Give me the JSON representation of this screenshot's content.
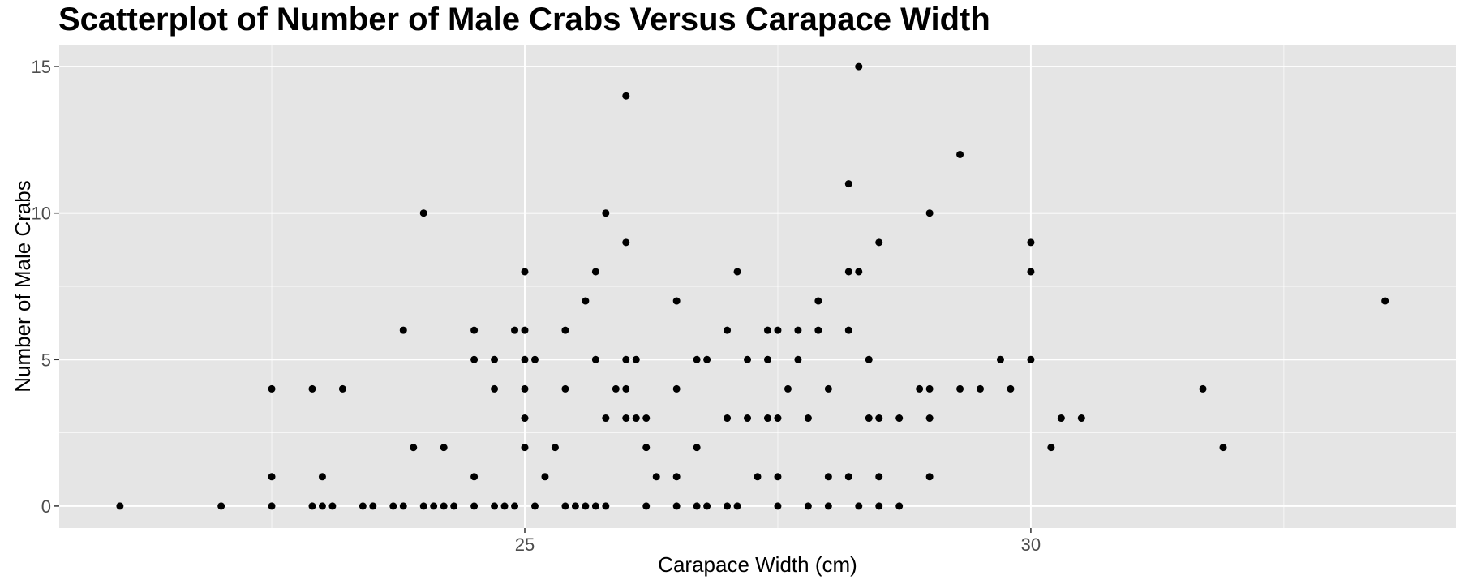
{
  "chart_data": {
    "type": "scatter",
    "title": "Scatterplot of Number of Male Crabs Versus Carapace Width",
    "xlabel": "Carapace Width (cm)",
    "ylabel": "Number of Male Crabs",
    "xlim": [
      20.4,
      34.2
    ],
    "ylim": [
      -0.75,
      15.75
    ],
    "x_ticks": [
      25,
      30
    ],
    "x_minor_ticks": [
      22.5,
      27.5,
      32.5
    ],
    "y_ticks": [
      0,
      5,
      10,
      15
    ],
    "y_minor_ticks": [
      2.5,
      7.5,
      12.5
    ],
    "grid": true,
    "background": "#e5e5e5",
    "grid_color": "#ffffff",
    "point_color": "#000000",
    "points": [
      {
        "x": 21.0,
        "y": 0
      },
      {
        "x": 22.0,
        "y": 0
      },
      {
        "x": 22.5,
        "y": 0
      },
      {
        "x": 22.5,
        "y": 1
      },
      {
        "x": 22.5,
        "y": 4
      },
      {
        "x": 22.9,
        "y": 0
      },
      {
        "x": 22.9,
        "y": 4
      },
      {
        "x": 23.0,
        "y": 0
      },
      {
        "x": 23.0,
        "y": 1
      },
      {
        "x": 23.1,
        "y": 0
      },
      {
        "x": 23.2,
        "y": 4
      },
      {
        "x": 23.4,
        "y": 0
      },
      {
        "x": 23.5,
        "y": 0
      },
      {
        "x": 23.7,
        "y": 0
      },
      {
        "x": 23.8,
        "y": 0
      },
      {
        "x": 23.8,
        "y": 6
      },
      {
        "x": 23.9,
        "y": 2
      },
      {
        "x": 24.0,
        "y": 0
      },
      {
        "x": 24.0,
        "y": 10
      },
      {
        "x": 24.1,
        "y": 0
      },
      {
        "x": 24.2,
        "y": 0
      },
      {
        "x": 24.2,
        "y": 2
      },
      {
        "x": 24.3,
        "y": 0
      },
      {
        "x": 24.5,
        "y": 0
      },
      {
        "x": 24.5,
        "y": 1
      },
      {
        "x": 24.5,
        "y": 5
      },
      {
        "x": 24.5,
        "y": 6
      },
      {
        "x": 24.7,
        "y": 0
      },
      {
        "x": 24.7,
        "y": 4
      },
      {
        "x": 24.7,
        "y": 5
      },
      {
        "x": 24.8,
        "y": 0
      },
      {
        "x": 24.9,
        "y": 0
      },
      {
        "x": 24.9,
        "y": 6
      },
      {
        "x": 25.0,
        "y": 2
      },
      {
        "x": 25.0,
        "y": 3
      },
      {
        "x": 25.0,
        "y": 4
      },
      {
        "x": 25.0,
        "y": 5
      },
      {
        "x": 25.0,
        "y": 6
      },
      {
        "x": 25.0,
        "y": 8
      },
      {
        "x": 25.1,
        "y": 0
      },
      {
        "x": 25.1,
        "y": 5
      },
      {
        "x": 25.2,
        "y": 1
      },
      {
        "x": 25.3,
        "y": 2
      },
      {
        "x": 25.4,
        "y": 0
      },
      {
        "x": 25.4,
        "y": 4
      },
      {
        "x": 25.4,
        "y": 6
      },
      {
        "x": 25.5,
        "y": 0
      },
      {
        "x": 25.6,
        "y": 0
      },
      {
        "x": 25.6,
        "y": 7
      },
      {
        "x": 25.7,
        "y": 0
      },
      {
        "x": 25.7,
        "y": 5
      },
      {
        "x": 25.7,
        "y": 8
      },
      {
        "x": 25.8,
        "y": 0
      },
      {
        "x": 25.8,
        "y": 3
      },
      {
        "x": 25.8,
        "y": 10
      },
      {
        "x": 25.9,
        "y": 4
      },
      {
        "x": 26.0,
        "y": 3
      },
      {
        "x": 26.0,
        "y": 4
      },
      {
        "x": 26.0,
        "y": 5
      },
      {
        "x": 26.0,
        "y": 9
      },
      {
        "x": 26.0,
        "y": 14
      },
      {
        "x": 26.1,
        "y": 3
      },
      {
        "x": 26.1,
        "y": 5
      },
      {
        "x": 26.2,
        "y": 0
      },
      {
        "x": 26.2,
        "y": 2
      },
      {
        "x": 26.2,
        "y": 3
      },
      {
        "x": 26.3,
        "y": 1
      },
      {
        "x": 26.5,
        "y": 0
      },
      {
        "x": 26.5,
        "y": 1
      },
      {
        "x": 26.5,
        "y": 4
      },
      {
        "x": 26.5,
        "y": 7
      },
      {
        "x": 26.7,
        "y": 0
      },
      {
        "x": 26.7,
        "y": 2
      },
      {
        "x": 26.7,
        "y": 5
      },
      {
        "x": 26.8,
        "y": 0
      },
      {
        "x": 26.8,
        "y": 5
      },
      {
        "x": 27.0,
        "y": 0
      },
      {
        "x": 27.0,
        "y": 3
      },
      {
        "x": 27.0,
        "y": 6
      },
      {
        "x": 27.1,
        "y": 0
      },
      {
        "x": 27.1,
        "y": 8
      },
      {
        "x": 27.2,
        "y": 3
      },
      {
        "x": 27.2,
        "y": 5
      },
      {
        "x": 27.3,
        "y": 1
      },
      {
        "x": 27.4,
        "y": 3
      },
      {
        "x": 27.4,
        "y": 5
      },
      {
        "x": 27.4,
        "y": 6
      },
      {
        "x": 27.5,
        "y": 0
      },
      {
        "x": 27.5,
        "y": 1
      },
      {
        "x": 27.5,
        "y": 3
      },
      {
        "x": 27.5,
        "y": 6
      },
      {
        "x": 27.6,
        "y": 4
      },
      {
        "x": 27.7,
        "y": 5
      },
      {
        "x": 27.7,
        "y": 6
      },
      {
        "x": 27.8,
        "y": 0
      },
      {
        "x": 27.8,
        "y": 3
      },
      {
        "x": 27.9,
        "y": 6
      },
      {
        "x": 27.9,
        "y": 7
      },
      {
        "x": 28.0,
        "y": 0
      },
      {
        "x": 28.0,
        "y": 1
      },
      {
        "x": 28.0,
        "y": 4
      },
      {
        "x": 28.2,
        "y": 1
      },
      {
        "x": 28.2,
        "y": 6
      },
      {
        "x": 28.2,
        "y": 8
      },
      {
        "x": 28.2,
        "y": 11
      },
      {
        "x": 28.3,
        "y": 0
      },
      {
        "x": 28.3,
        "y": 8
      },
      {
        "x": 28.3,
        "y": 15
      },
      {
        "x": 28.4,
        "y": 3
      },
      {
        "x": 28.4,
        "y": 5
      },
      {
        "x": 28.5,
        "y": 0
      },
      {
        "x": 28.5,
        "y": 1
      },
      {
        "x": 28.5,
        "y": 3
      },
      {
        "x": 28.5,
        "y": 9
      },
      {
        "x": 28.7,
        "y": 0
      },
      {
        "x": 28.7,
        "y": 3
      },
      {
        "x": 28.9,
        "y": 4
      },
      {
        "x": 29.0,
        "y": 1
      },
      {
        "x": 29.0,
        "y": 3
      },
      {
        "x": 29.0,
        "y": 4
      },
      {
        "x": 29.0,
        "y": 10
      },
      {
        "x": 29.3,
        "y": 4
      },
      {
        "x": 29.3,
        "y": 12
      },
      {
        "x": 29.5,
        "y": 4
      },
      {
        "x": 29.7,
        "y": 5
      },
      {
        "x": 29.8,
        "y": 4
      },
      {
        "x": 30.0,
        "y": 5
      },
      {
        "x": 30.0,
        "y": 8
      },
      {
        "x": 30.0,
        "y": 9
      },
      {
        "x": 30.2,
        "y": 2
      },
      {
        "x": 30.3,
        "y": 3
      },
      {
        "x": 30.5,
        "y": 3
      },
      {
        "x": 31.7,
        "y": 4
      },
      {
        "x": 31.9,
        "y": 2
      },
      {
        "x": 33.5,
        "y": 7
      }
    ]
  }
}
